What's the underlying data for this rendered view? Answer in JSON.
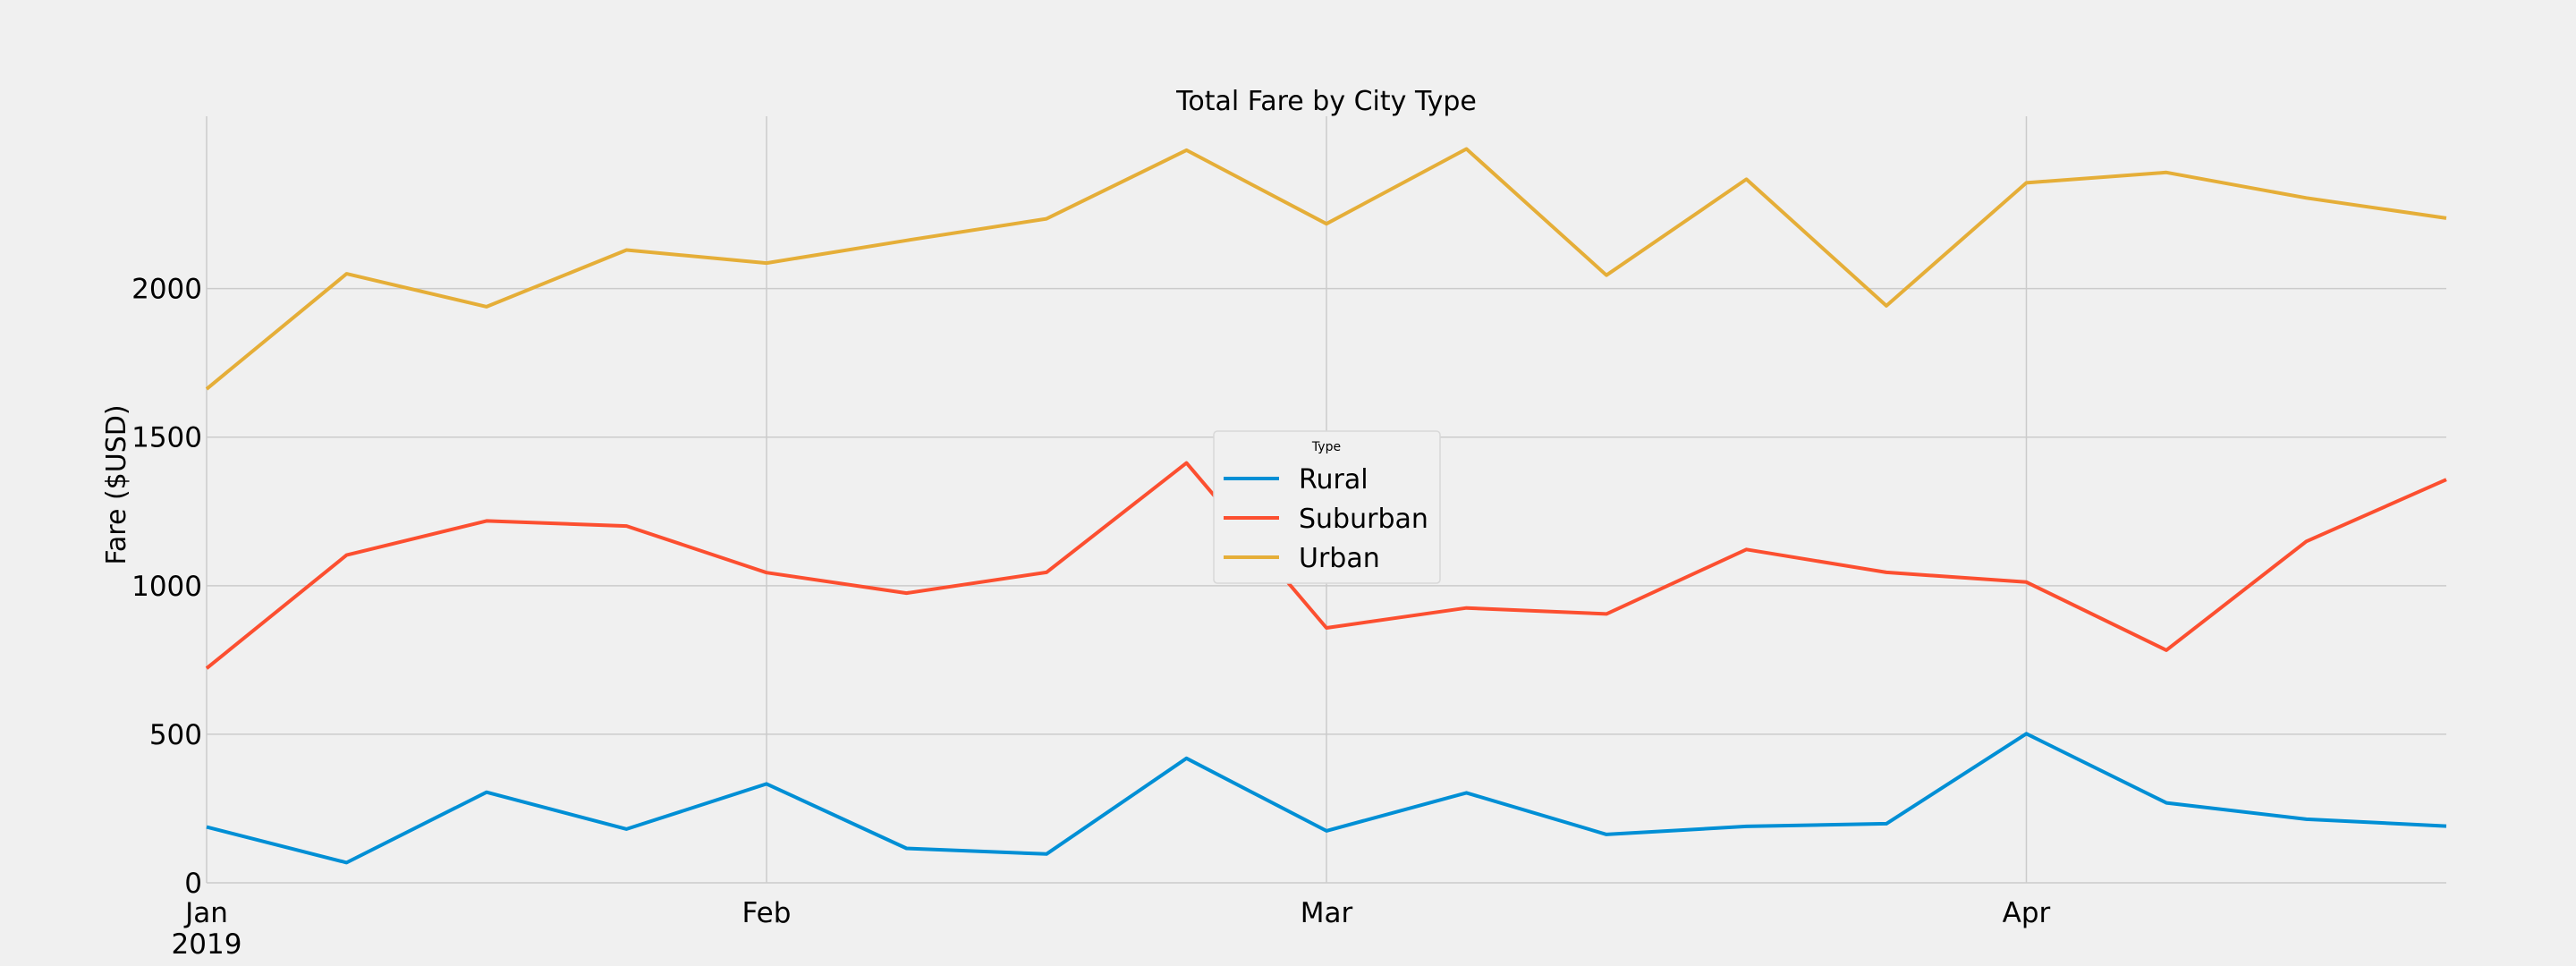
{
  "chart_data": {
    "type": "line",
    "title": "Total Fare by City Type",
    "xlabel": "",
    "ylabel": "Fare ($USD)",
    "x": [
      "2019-01-06",
      "2019-01-13",
      "2019-01-20",
      "2019-01-27",
      "2019-02-03",
      "2019-02-10",
      "2019-02-17",
      "2019-02-24",
      "2019-03-03",
      "2019-03-10",
      "2019-03-17",
      "2019-03-24",
      "2019-03-31",
      "2019-04-07",
      "2019-04-14",
      "2019-04-21",
      "2019-04-28"
    ],
    "xlim": [
      "2019-01-06",
      "2019-04-28"
    ],
    "ylim": [
      0,
      2580
    ],
    "x_ticks": [
      {
        "date": "2019-01-06",
        "label": "Jan",
        "sublabel": "2019"
      },
      {
        "date": "2019-02-03",
        "label": "Feb"
      },
      {
        "date": "2019-03-03",
        "label": "Mar"
      },
      {
        "date": "2019-04-07",
        "label": "Apr"
      }
    ],
    "y_ticks": [
      0,
      500,
      1000,
      1500,
      2000
    ],
    "grid": true,
    "legend": {
      "title": "Type",
      "placement": "center"
    },
    "series": [
      {
        "name": "Rural",
        "color": "#008fd5",
        "values": [
          188,
          68,
          305,
          181,
          333,
          116,
          97,
          419,
          175,
          303,
          163,
          190,
          199,
          502,
          269,
          214,
          191
        ]
      },
      {
        "name": "Suburban",
        "color": "#fc4f30",
        "values": [
          722,
          1103,
          1218,
          1201,
          1044,
          975,
          1045,
          1413,
          858,
          925,
          905,
          1122,
          1045,
          1012,
          783,
          1149,
          1357
        ]
      },
      {
        "name": "Urban",
        "color": "#e5ae38",
        "values": [
          1662,
          2050,
          1939,
          2130,
          2086,
          2162,
          2235,
          2466,
          2218,
          2470,
          2045,
          2368,
          1942,
          2356,
          2391,
          2305,
          2237
        ]
      }
    ]
  }
}
